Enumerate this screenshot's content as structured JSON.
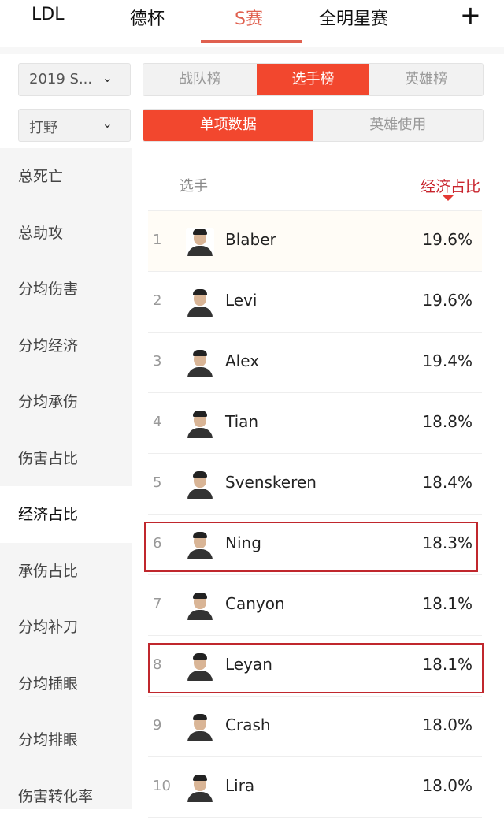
{
  "top_tabs": [
    "LDL",
    "德杯",
    "S赛",
    "全明星赛"
  ],
  "active_tab": "S赛",
  "add_icon": "+",
  "filters": {
    "season": "2019 S...",
    "position": "打野",
    "board_tabs": [
      "战队榜",
      "选手榜",
      "英雄榜"
    ],
    "active_board": "选手榜",
    "data_tabs": [
      "单项数据",
      "英雄使用"
    ],
    "active_data": "单项数据"
  },
  "sidebar": {
    "items": [
      "总死亡",
      "总助攻",
      "分均伤害",
      "分均经济",
      "分均承伤",
      "伤害占比",
      "经济占比",
      "承伤占比",
      "分均补刀",
      "分均插眼",
      "分均排眼",
      "伤害转化率"
    ],
    "active": "经济占比"
  },
  "table": {
    "col_player": "选手",
    "col_stat": "经济占比",
    "sort": "descending",
    "rows": [
      {
        "rank": "1",
        "name": "Blaber",
        "value": "19.6%"
      },
      {
        "rank": "2",
        "name": "Levi",
        "value": "19.6%"
      },
      {
        "rank": "3",
        "name": "Alex",
        "value": "19.4%"
      },
      {
        "rank": "4",
        "name": "Tian",
        "value": "18.8%"
      },
      {
        "rank": "5",
        "name": "Svenskeren",
        "value": "18.4%"
      },
      {
        "rank": "6",
        "name": "Ning",
        "value": "18.3%",
        "highlighted": true
      },
      {
        "rank": "7",
        "name": "Canyon",
        "value": "18.1%"
      },
      {
        "rank": "8",
        "name": "Leyan",
        "value": "18.1%",
        "highlighted": true
      },
      {
        "rank": "9",
        "name": "Crash",
        "value": "18.0%"
      },
      {
        "rank": "10",
        "name": "Lira",
        "value": "18.0%"
      }
    ]
  },
  "colors": {
    "accent": "#f2472e",
    "tab_active": "#e0604f",
    "highlight_box": "#c0272d"
  }
}
